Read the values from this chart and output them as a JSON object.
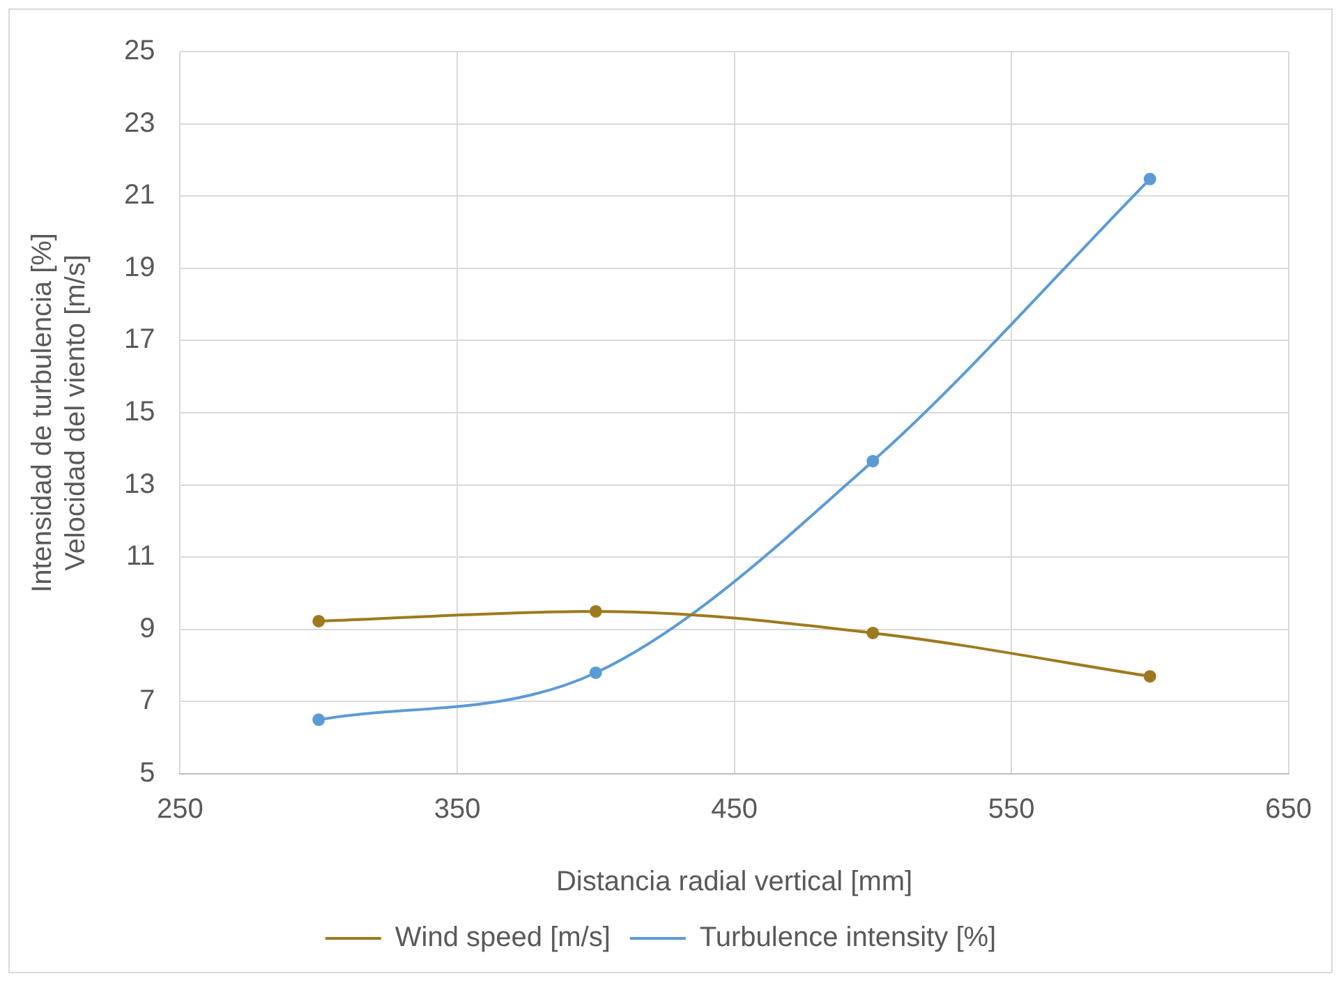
{
  "chart_data": {
    "type": "line",
    "xlabel": "Distancia radial vertical [mm]",
    "ylabel": "Intensidad de turbulencia [%]\nVelocidad del viento [m/s]",
    "x": [
      300,
      400,
      500,
      600
    ],
    "series": [
      {
        "name": "Wind speed [m/s]",
        "color": "#9e7a1e",
        "values": [
          9.23,
          9.5,
          8.9,
          7.7
        ]
      },
      {
        "name": "Turbulence intensity [%]",
        "color": "#5b9bd5",
        "values": [
          6.5,
          7.8,
          13.66,
          21.47
        ]
      }
    ],
    "xlim": [
      250,
      650
    ],
    "xticks": [
      250,
      350,
      450,
      550,
      650
    ],
    "ylim": [
      5,
      25
    ],
    "yticks": [
      5,
      7,
      9,
      11,
      13,
      15,
      17,
      19,
      21,
      23,
      25
    ],
    "grid": true,
    "legend": "bottom",
    "marker": "circle",
    "line_style": "solid"
  }
}
